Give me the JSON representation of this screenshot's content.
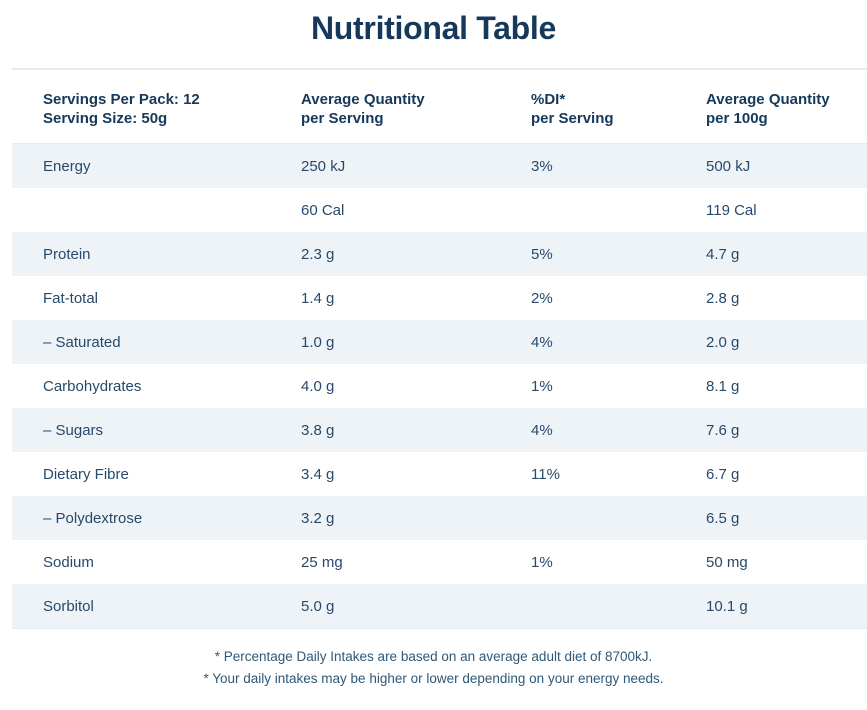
{
  "title": "Nutritional Table",
  "table": {
    "header": {
      "col1_line1": "Servings Per Pack: 12",
      "col1_line2": "Serving Size: 50g",
      "col2_line1": "Average Quantity",
      "col2_line2": "per Serving",
      "col3_line1": "%DI*",
      "col3_line2": "per Serving",
      "col4_line1": "Average Quantity",
      "col4_line2": "per 100g"
    },
    "rows": [
      {
        "label": "Energy",
        "per_serving": "250 kJ",
        "di": "3%",
        "per_100g": "500 kJ"
      },
      {
        "label": "",
        "per_serving": "60 Cal",
        "di": "",
        "per_100g": "119 Cal"
      },
      {
        "label": "Protein",
        "per_serving": "2.3 g",
        "di": "5%",
        "per_100g": "4.7 g"
      },
      {
        "label": "Fat-total",
        "per_serving": "1.4 g",
        "di": "2%",
        "per_100g": "2.8 g"
      },
      {
        "label": "– Saturated",
        "per_serving": "1.0 g",
        "di": "4%",
        "per_100g": "2.0 g"
      },
      {
        "label": "Carbohydrates",
        "per_serving": "4.0 g",
        "di": "1%",
        "per_100g": "8.1 g"
      },
      {
        "label": "– Sugars",
        "per_serving": "3.8 g",
        "di": "4%",
        "per_100g": "7.6 g"
      },
      {
        "label": "Dietary Fibre",
        "per_serving": "3.4 g",
        "di": "11%",
        "per_100g": "6.7 g"
      },
      {
        "label": "– Polydextrose",
        "per_serving": "3.2 g",
        "di": "",
        "per_100g": "6.5 g"
      },
      {
        "label": "Sodium",
        "per_serving": "25 mg",
        "di": "1%",
        "per_100g": "50 mg"
      },
      {
        "label": "Sorbitol",
        "per_serving": "5.0 g",
        "di": "",
        "per_100g": "10.1 g"
      }
    ]
  },
  "footnotes": [
    "* Percentage Daily Intakes are based on an average adult diet of 8700kJ.",
    "* Your daily intakes may be higher or lower depending on your energy needs."
  ],
  "colors": {
    "navy": "#16395b",
    "body_navy": "#27496b",
    "stripe": "#eef3f7",
    "line": "#e4eaed",
    "note_navy": "#2e5878"
  }
}
